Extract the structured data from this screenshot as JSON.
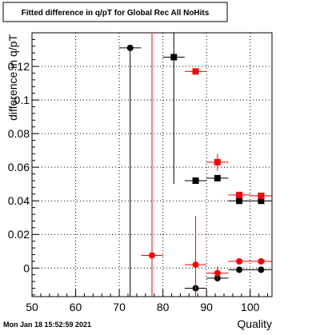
{
  "timestamp": "Mon Jan 18 15:52:59 2021",
  "chart_data": {
    "type": "scatter",
    "title": "Fitted difference in q/pT for Global Rec All NoHits",
    "xlabel": "Quality",
    "ylabel": "difference in q/pT",
    "xlim": [
      50,
      105
    ],
    "ylim": [
      -0.017,
      0.14
    ],
    "x_ticks": [
      50,
      60,
      70,
      80,
      90,
      100
    ],
    "y_ticks": [
      0,
      0.02,
      0.04,
      0.06,
      0.08,
      0.1,
      0.12
    ],
    "y_tick_labels": [
      "0",
      "0.02",
      "0.04",
      "0.06",
      "0.08",
      "0.1",
      "0.12"
    ],
    "grid": true,
    "series": [
      {
        "marker": "circle",
        "color": "#000000",
        "points": [
          {
            "x": 72.5,
            "y": 0.131,
            "xerr": 2.5,
            "ylo": -0.017,
            "yhi": 0.131
          },
          {
            "x": 87.5,
            "y": -0.012,
            "xerr": 2.5,
            "ylo": -0.017,
            "yhi": -0.012
          },
          {
            "x": 92.5,
            "y": -0.006,
            "xerr": 2.5,
            "ylo": -0.008,
            "yhi": -0.004
          },
          {
            "x": 97.5,
            "y": -0.001,
            "xerr": 2.5,
            "ylo": -0.0015,
            "yhi": -0.0005
          },
          {
            "x": 102.5,
            "y": -0.001,
            "xerr": 2.5,
            "ylo": -0.0015,
            "yhi": -0.0005
          }
        ]
      },
      {
        "marker": "square",
        "color": "#000000",
        "points": [
          {
            "x": 82.5,
            "y": 0.1255,
            "xerr": 2.5,
            "ylo": 0.05,
            "yhi": 0.14
          },
          {
            "x": 87.5,
            "y": 0.052,
            "xerr": 2.5,
            "ylo": 0.051,
            "yhi": 0.053
          },
          {
            "x": 92.5,
            "y": 0.0535,
            "xerr": 2.5,
            "ylo": 0.052,
            "yhi": 0.055
          },
          {
            "x": 97.5,
            "y": 0.04,
            "xerr": 2.5,
            "ylo": 0.0395,
            "yhi": 0.0405
          },
          {
            "x": 102.5,
            "y": 0.04,
            "xerr": 2.5,
            "ylo": 0.0395,
            "yhi": 0.0405
          }
        ]
      },
      {
        "marker": "circle",
        "color": "#ff0000",
        "points": [
          {
            "x": 77.5,
            "y": 0.0075,
            "xerr": 2.5,
            "ylo": -0.017,
            "yhi": 0.14
          },
          {
            "x": 87.5,
            "y": 0.002,
            "xerr": 2.5,
            "ylo": -0.017,
            "yhi": 0.031
          },
          {
            "x": 92.5,
            "y": -0.003,
            "xerr": 2.5,
            "ylo": -0.007,
            "yhi": 0.001
          },
          {
            "x": 97.5,
            "y": 0.004,
            "xerr": 2.5,
            "ylo": 0.0035,
            "yhi": 0.0045
          },
          {
            "x": 102.5,
            "y": 0.004,
            "xerr": 2.5,
            "ylo": 0.0035,
            "yhi": 0.0045
          }
        ]
      },
      {
        "marker": "square",
        "color": "#ff0000",
        "points": [
          {
            "x": 87.5,
            "y": 0.117,
            "xerr": 2.5,
            "ylo": 0.116,
            "yhi": 0.118
          },
          {
            "x": 92.5,
            "y": 0.063,
            "xerr": 2.5,
            "ylo": 0.058,
            "yhi": 0.068
          },
          {
            "x": 97.5,
            "y": 0.0435,
            "xerr": 2.5,
            "ylo": 0.0425,
            "yhi": 0.0445
          },
          {
            "x": 102.5,
            "y": 0.043,
            "xerr": 2.5,
            "ylo": 0.042,
            "yhi": 0.044
          }
        ]
      }
    ]
  }
}
